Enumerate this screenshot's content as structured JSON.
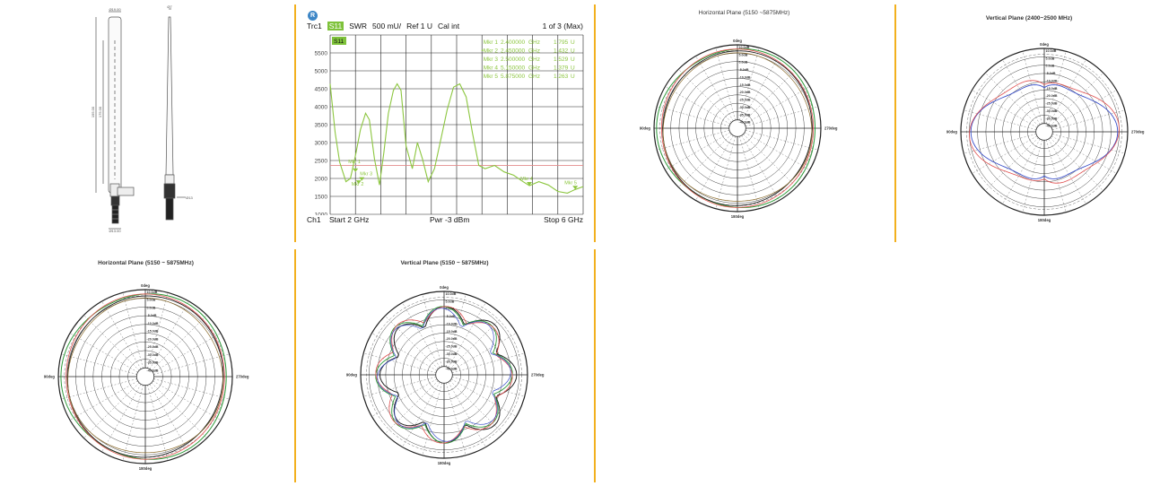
{
  "drawing": {
    "dims": {
      "top_cap": "Ø19.00",
      "length_main": "195.00",
      "length_inner": "175.00",
      "base_width": "Ø13.00",
      "side_top": "Ø7",
      "side_base": "Ø13"
    }
  },
  "vna": {
    "logo": "R",
    "trace": "Trc1",
    "param": "S11",
    "format": "SWR",
    "scale": "500 mU/",
    "ref": "Ref 1 U",
    "cal": "Cal int",
    "page": "1 of 3 (Max)",
    "trace_label": "S11",
    "y_ticks": [
      "5500",
      "5000",
      "4500",
      "4000",
      "3500",
      "3000",
      "2500",
      "2000",
      "1500",
      "1000"
    ],
    "markers": [
      {
        "name": "Mkr 1",
        "freq": "2.400000",
        "unit": "GHz",
        "value": "1.795",
        "vunit": "U"
      },
      {
        "name": "•Mkr 2",
        "freq": "2.450000",
        "unit": "GHz",
        "value": "1.432",
        "vunit": "U"
      },
      {
        "name": "Mkr 3",
        "freq": "2.500000",
        "unit": "GHz",
        "value": "1.529",
        "vunit": "U"
      },
      {
        "name": "Mkr 4",
        "freq": "5.150000",
        "unit": "GHz",
        "value": "1.379",
        "vunit": "U"
      },
      {
        "name": "Mkr 5",
        "freq": "5.875000",
        "unit": "GHz",
        "value": "1.263",
        "vunit": "U"
      }
    ],
    "marker_labels": [
      "Mkr 1",
      "Mkr 2",
      "Mkr 3",
      "Mkr 4",
      "Mkr 5"
    ],
    "channel": "Ch1",
    "start": "Start  2 GHz",
    "power": "Pwr  -3 dBm",
    "stop": "Stop  6 GHz",
    "colors": {
      "trace": "#8cc63f",
      "ref_line": "#e28b8b",
      "grid": "#222222",
      "badge": "#7ec23a"
    }
  },
  "charts": {
    "p1": {
      "title": "Horizontal Plane (5150 ~5875MHz)",
      "top": "0deg",
      "left": "90deg",
      "right": "270deg",
      "bottom": "180deg"
    },
    "p2": {
      "title": "Vertical Plane (2400~2500 MHz)",
      "top": "0deg",
      "left": "90deg",
      "right": "270deg",
      "bottom": "180deg"
    },
    "p3": {
      "title": "Horizontal Plane (5150 ~ 5875MHz)",
      "top": "0deg",
      "left": "90deg",
      "right": "270deg",
      "bottom": "180deg"
    },
    "p4": {
      "title": "Vertical Plane (5150 ~ 5875MHz)",
      "top": "0deg",
      "left": "90deg",
      "right": "270deg",
      "bottom": "180deg"
    }
  },
  "ring_labels": [
    "10.0dB",
    "5.0dB",
    "0.0dB",
    "-5.0dB",
    "-10.0dB",
    "-15.0dB",
    "-20.0dB",
    "-25.0dB",
    "-30.0dB",
    "-35.0dB",
    "-40.0dB"
  ],
  "colors": {
    "separator": "#f2b01e",
    "red": "#e05050",
    "blue": "#3a4fc9",
    "green": "#2e9a3a",
    "black": "#222222"
  }
}
